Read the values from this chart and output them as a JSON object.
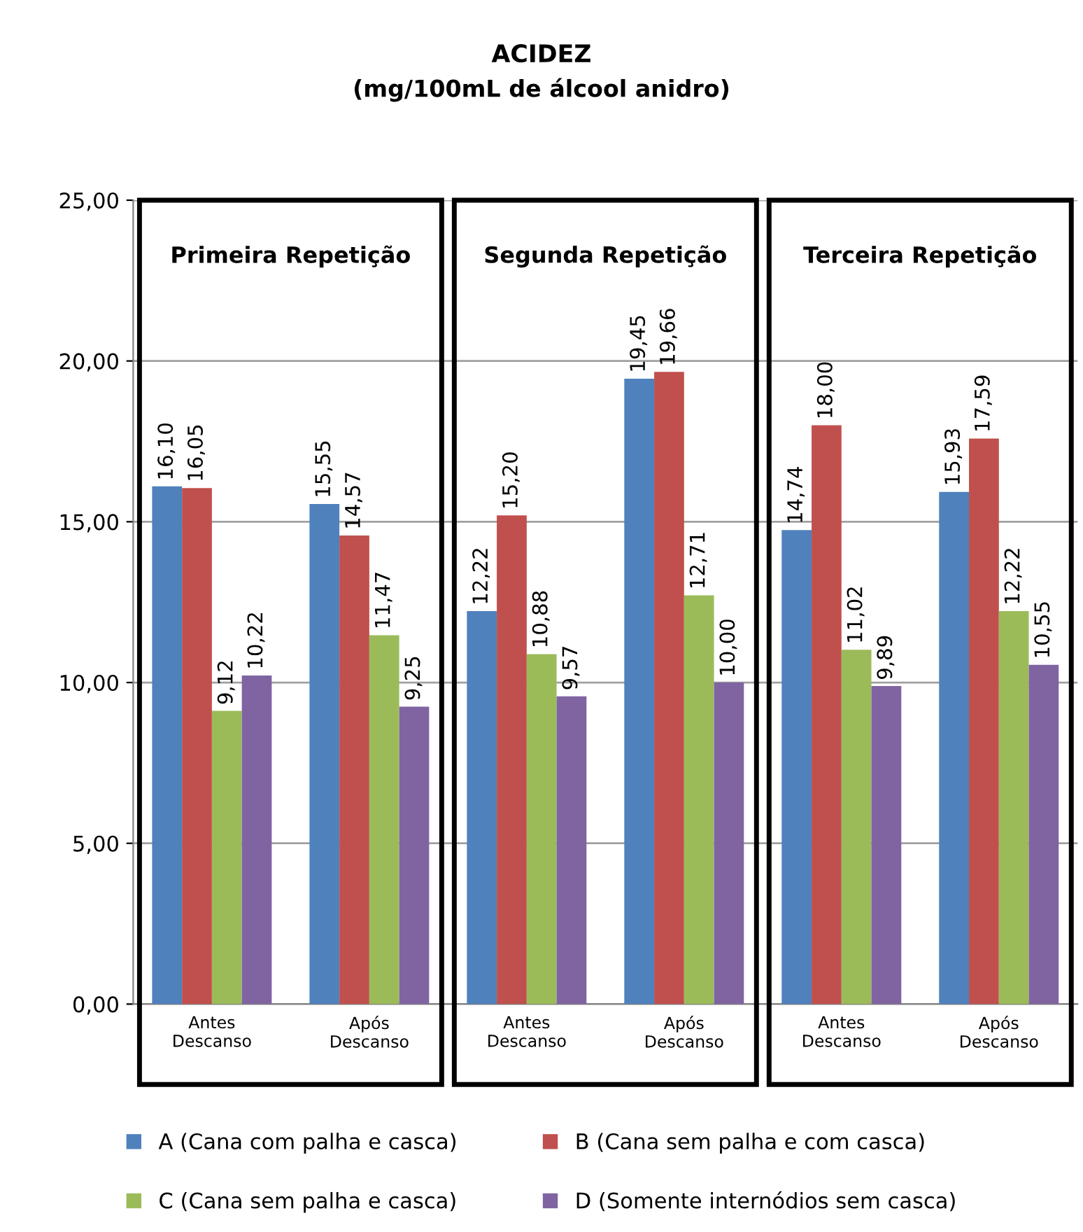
{
  "chart_data": {
    "type": "bar",
    "title": "ACIDEZ",
    "subtitle": "(mg/100mL de álcool anidro)",
    "categories": [
      "Antes\nDescanso",
      "Após\nDescanso",
      "Antes\nDescanso",
      "Após\nDescanso",
      "Antes\nDescanso",
      "Após\nDescanso"
    ],
    "series": [
      {
        "name": "A (Cana com palha e casca)",
        "color": "#4f81bd",
        "values": [
          16.1,
          15.55,
          12.22,
          19.45,
          14.74,
          15.93
        ],
        "value_labels": [
          "16,10",
          "15,55",
          "12,22",
          "19,45",
          "14,74",
          "15,93"
        ]
      },
      {
        "name": "B (Cana sem palha e com casca)",
        "color": "#c0504d",
        "values": [
          16.05,
          14.57,
          15.2,
          19.66,
          18.0,
          17.59
        ],
        "value_labels": [
          "16,05",
          "14,57",
          "15,20",
          "19,66",
          "18,00",
          "17,59"
        ]
      },
      {
        "name": "C (Cana sem palha e casca)",
        "color": "#9bbb59",
        "values": [
          9.12,
          11.47,
          10.88,
          12.71,
          11.02,
          12.22
        ],
        "value_labels": [
          "9,12",
          "11,47",
          "10,88",
          "12,71",
          "11,02",
          "12,22"
        ]
      },
      {
        "name": "D (Somente internódios sem casca)",
        "color": "#8064a2",
        "values": [
          10.22,
          9.25,
          9.57,
          10.0,
          9.89,
          10.55
        ],
        "value_labels": [
          "10,22",
          "9,25",
          "9,57",
          "10,00",
          "9,89",
          "10,55"
        ]
      }
    ],
    "annotations": [
      "Primeira Repetição",
      "Segunda Repetição",
      "Terceira Repetição"
    ],
    "ylim": [
      0,
      25
    ],
    "yticks": [
      {
        "value": 0,
        "label": "0,00"
      },
      {
        "value": 5,
        "label": "5,00"
      },
      {
        "value": 10,
        "label": "10,00"
      },
      {
        "value": 15,
        "label": "15,00"
      },
      {
        "value": 20,
        "label": "20,00"
      },
      {
        "value": 25,
        "label": "25,00"
      }
    ],
    "grid": "y",
    "legend": "bottom"
  }
}
